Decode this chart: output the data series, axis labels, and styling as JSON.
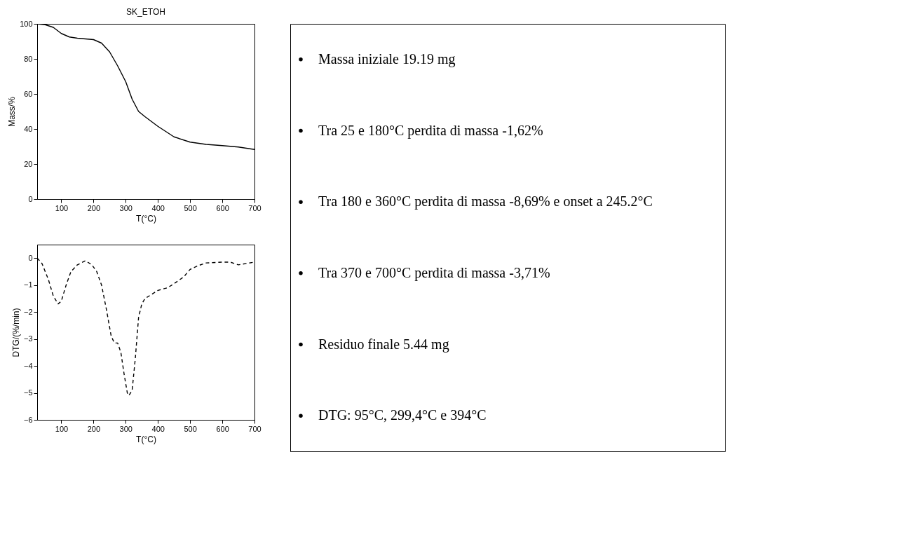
{
  "chart_data": [
    {
      "type": "line",
      "title": "SK_ETOH",
      "xlabel": "T(°C)",
      "ylabel": "Mass/%",
      "xlim": [
        25,
        700
      ],
      "xticks": [
        100,
        200,
        300,
        400,
        500,
        600,
        700
      ],
      "ylim": [
        0,
        100
      ],
      "yticks": [
        0,
        20,
        40,
        60,
        80,
        100
      ],
      "grid": false,
      "line_style": "solid",
      "x": [
        25,
        50,
        75,
        100,
        125,
        150,
        200,
        225,
        250,
        275,
        300,
        320,
        340,
        360,
        400,
        450,
        500,
        550,
        600,
        650,
        700
      ],
      "series": [
        {
          "color": "#000000",
          "values": [
            100,
            99.5,
            98,
            94.5,
            92.5,
            91.8,
            91,
            89,
            84,
            76,
            67,
            57,
            50,
            47,
            41.5,
            35.5,
            32.5,
            31.2,
            30.5,
            29.7,
            28.3
          ]
        }
      ]
    },
    {
      "type": "line",
      "xlabel": "T(°C)",
      "ylabel": "DTG/(%/min)",
      "xlim": [
        25,
        700
      ],
      "xticks": [
        100,
        200,
        300,
        400,
        500,
        600,
        700
      ],
      "ylim": [
        -6,
        0.5
      ],
      "yticks": [
        -6,
        -5,
        -4,
        -3,
        -2,
        -1,
        0
      ],
      "grid": false,
      "line_style": "dashed",
      "x": [
        25,
        40,
        60,
        75,
        90,
        100,
        115,
        130,
        150,
        175,
        195,
        210,
        225,
        240,
        255,
        265,
        275,
        285,
        295,
        305,
        310,
        320,
        330,
        340,
        350,
        360,
        380,
        400,
        430,
        450,
        480,
        500,
        525,
        550,
        600,
        625,
        650,
        675,
        700
      ],
      "series": [
        {
          "color": "#000000",
          "values": [
            0,
            -0.2,
            -0.8,
            -1.4,
            -1.7,
            -1.6,
            -1.0,
            -0.5,
            -0.25,
            -0.1,
            -0.25,
            -0.5,
            -1.0,
            -1.9,
            -2.9,
            -3.15,
            -3.15,
            -3.5,
            -4.3,
            -5.0,
            -5.1,
            -4.9,
            -3.7,
            -2.2,
            -1.7,
            -1.5,
            -1.35,
            -1.2,
            -1.1,
            -0.95,
            -0.7,
            -0.42,
            -0.28,
            -0.18,
            -0.15,
            -0.15,
            -0.25,
            -0.2,
            -0.15
          ]
        }
      ]
    },
    {
      "type": "other",
      "annotations": [
        "Massa iniziale 19.19 mg",
        "Tra 25 e 180°C perdita di massa -1,62%",
        "Tra 180 e 360°C perdita di massa -8,69% e onset a 245.2°C",
        "Tra 370 e 700°C perdita di massa -3,71%",
        "Residuo finale 5.44 mg",
        "DTG: 95°C, 299,4°C e 394°C"
      ]
    }
  ]
}
